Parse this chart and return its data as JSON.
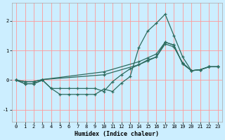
{
  "title": "",
  "xlabel": "Humidex (Indice chaleur)",
  "bg_color": "#cceeff",
  "grid_color": "#ff9999",
  "line_color": "#2d6b5e",
  "xlim": [
    -0.5,
    23.5
  ],
  "ylim": [
    -1.4,
    2.6
  ],
  "yticks": [
    -1,
    0,
    1,
    2
  ],
  "xticks": [
    0,
    1,
    2,
    3,
    4,
    5,
    6,
    7,
    8,
    9,
    10,
    11,
    12,
    13,
    14,
    15,
    16,
    17,
    18,
    19,
    20,
    21,
    22,
    23
  ],
  "line1_x": [
    0,
    1,
    2,
    3,
    4,
    5,
    6,
    7,
    8,
    9,
    10,
    11,
    12,
    13,
    14,
    15,
    16,
    17,
    18,
    19,
    20,
    21,
    22,
    23
  ],
  "line1_y": [
    0.0,
    -0.12,
    -0.12,
    0.0,
    -0.28,
    -0.48,
    -0.48,
    -0.48,
    -0.48,
    -0.48,
    -0.3,
    -0.38,
    -0.1,
    0.12,
    1.1,
    1.65,
    1.92,
    2.22,
    1.5,
    0.78,
    0.32,
    0.35,
    0.45,
    0.45
  ],
  "line2_x": [
    0,
    1,
    2,
    3,
    4,
    5,
    6,
    7,
    8,
    9,
    10,
    11,
    12,
    13,
    14,
    15,
    16,
    17,
    18,
    19,
    20,
    21,
    22,
    23
  ],
  "line2_y": [
    0.0,
    -0.12,
    -0.12,
    0.0,
    -0.28,
    -0.28,
    -0.28,
    -0.28,
    -0.28,
    -0.28,
    -0.38,
    -0.05,
    0.18,
    0.38,
    0.52,
    0.68,
    0.78,
    1.22,
    1.12,
    0.58,
    0.32,
    0.35,
    0.45,
    0.45
  ],
  "line3_x": [
    0,
    1,
    2,
    3,
    10,
    14,
    15,
    16,
    17,
    18,
    19,
    20,
    21,
    22,
    23
  ],
  "line3_y": [
    0.0,
    -0.05,
    -0.05,
    0.02,
    0.18,
    0.52,
    0.65,
    0.78,
    1.28,
    1.18,
    0.55,
    0.32,
    0.35,
    0.45,
    0.45
  ],
  "line4_x": [
    0,
    1,
    2,
    3,
    10,
    14,
    15,
    16,
    17,
    18,
    19,
    20,
    21,
    22,
    23
  ],
  "line4_y": [
    0.0,
    -0.05,
    -0.05,
    0.02,
    0.28,
    0.62,
    0.75,
    0.88,
    1.28,
    1.18,
    0.55,
    0.32,
    0.35,
    0.45,
    0.45
  ]
}
